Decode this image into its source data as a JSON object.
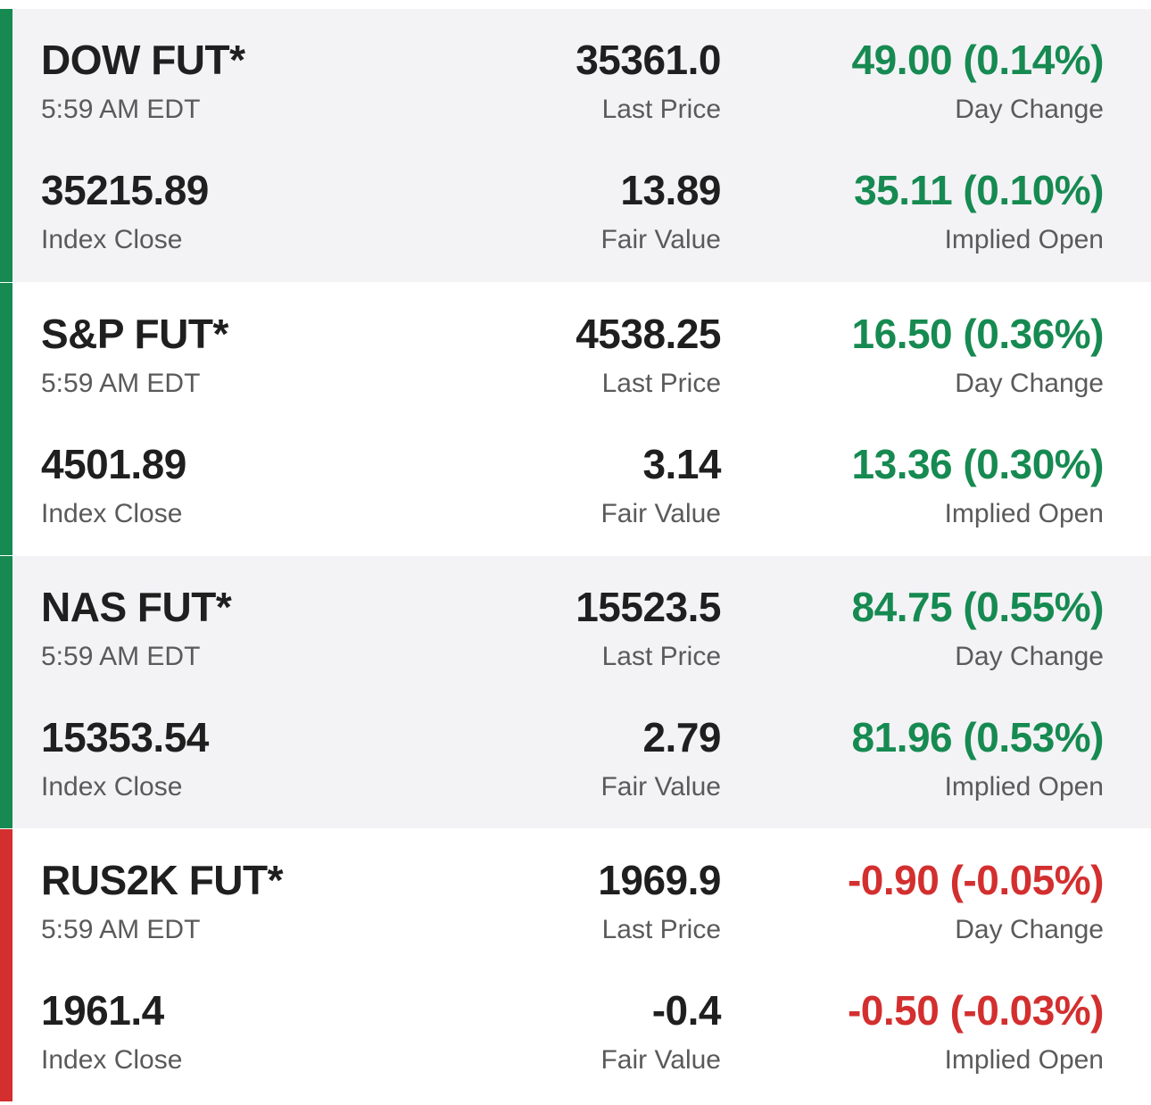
{
  "colors": {
    "positive": "#168a51",
    "negative": "#d32f2f",
    "label": "#5a5a5a",
    "row_shaded": "#f3f3f6"
  },
  "rows": [
    {
      "symbol": "DOW FUT*",
      "time": "5:59 AM EDT",
      "last_price": "35361.0",
      "last_price_label": "Last Price",
      "day_change": "49.00 (0.14%)",
      "day_change_label": "Day Change",
      "index_close": "35215.89",
      "index_close_label": "Index Close",
      "fair_value": "13.89",
      "fair_value_label": "Fair Value",
      "implied_open": "35.11 (0.10%)",
      "implied_open_label": "Implied Open",
      "direction": "up"
    },
    {
      "symbol": "S&P FUT*",
      "time": "5:59 AM EDT",
      "last_price": "4538.25",
      "last_price_label": "Last Price",
      "day_change": "16.50 (0.36%)",
      "day_change_label": "Day Change",
      "index_close": "4501.89",
      "index_close_label": "Index Close",
      "fair_value": "3.14",
      "fair_value_label": "Fair Value",
      "implied_open": "13.36 (0.30%)",
      "implied_open_label": "Implied Open",
      "direction": "up"
    },
    {
      "symbol": "NAS FUT*",
      "time": "5:59 AM EDT",
      "last_price": "15523.5",
      "last_price_label": "Last Price",
      "day_change": "84.75 (0.55%)",
      "day_change_label": "Day Change",
      "index_close": "15353.54",
      "index_close_label": "Index Close",
      "fair_value": "2.79",
      "fair_value_label": "Fair Value",
      "implied_open": "81.96 (0.53%)",
      "implied_open_label": "Implied Open",
      "direction": "up"
    },
    {
      "symbol": "RUS2K FUT*",
      "time": "5:59 AM EDT",
      "last_price": "1969.9",
      "last_price_label": "Last Price",
      "day_change": "-0.90 (-0.05%)",
      "day_change_label": "Day Change",
      "index_close": "1961.4",
      "index_close_label": "Index Close",
      "fair_value": "-0.4",
      "fair_value_label": "Fair Value",
      "implied_open": "-0.50 (-0.03%)",
      "implied_open_label": "Implied Open",
      "direction": "down"
    }
  ]
}
